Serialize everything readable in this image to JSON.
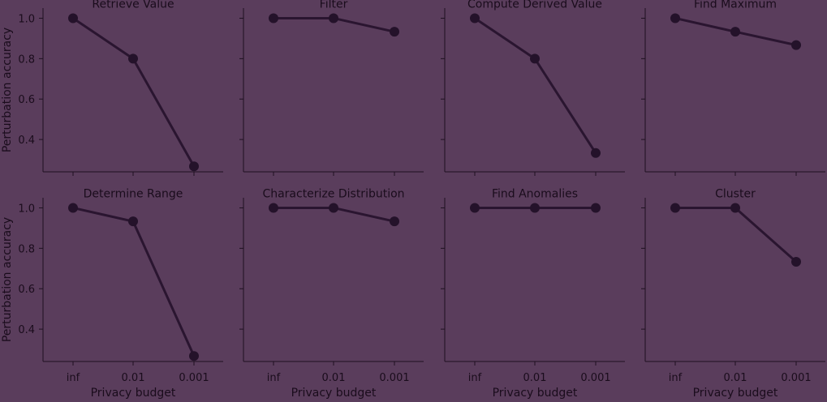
{
  "colors": {
    "background": "#5a3d5c",
    "axis": "#1e1020",
    "line": "#2a1530",
    "marker": "#24122a",
    "text": "#1a0c1c",
    "error_band": "#4a3b7a"
  },
  "chart_data": {
    "type": "line",
    "shared_x_label": "Privacy budget",
    "shared_y_label": "Perturbation accuracy",
    "x_tick_labels": [
      "inf",
      "0.01",
      "0.001"
    ],
    "y_ticks": [
      0.4,
      0.6,
      0.8,
      1.0
    ],
    "y_tick_labels": [
      "0.4",
      "0.6",
      "0.8",
      "1.0"
    ],
    "ylim": [
      0.24,
      1.05
    ],
    "grid": false,
    "panels": [
      {
        "title": "Retrieve Value",
        "values": [
          1.0,
          0.8,
          0.267
        ]
      },
      {
        "title": "Filter",
        "values": [
          1.0,
          1.0,
          0.933
        ]
      },
      {
        "title": "Compute Derived Value",
        "values": [
          1.0,
          0.8,
          0.333
        ]
      },
      {
        "title": "Find Maximum",
        "values": [
          1.0,
          0.933,
          0.867
        ]
      },
      {
        "title": "Determine Range",
        "values": [
          1.0,
          0.933,
          0.267
        ]
      },
      {
        "title": "Characterize Distribution",
        "values": [
          1.0,
          1.0,
          0.933
        ]
      },
      {
        "title": "Find Anomalies",
        "values": [
          1.0,
          1.0,
          1.0
        ]
      },
      {
        "title": "Cluster",
        "values": [
          1.0,
          1.0,
          0.733
        ]
      }
    ]
  }
}
